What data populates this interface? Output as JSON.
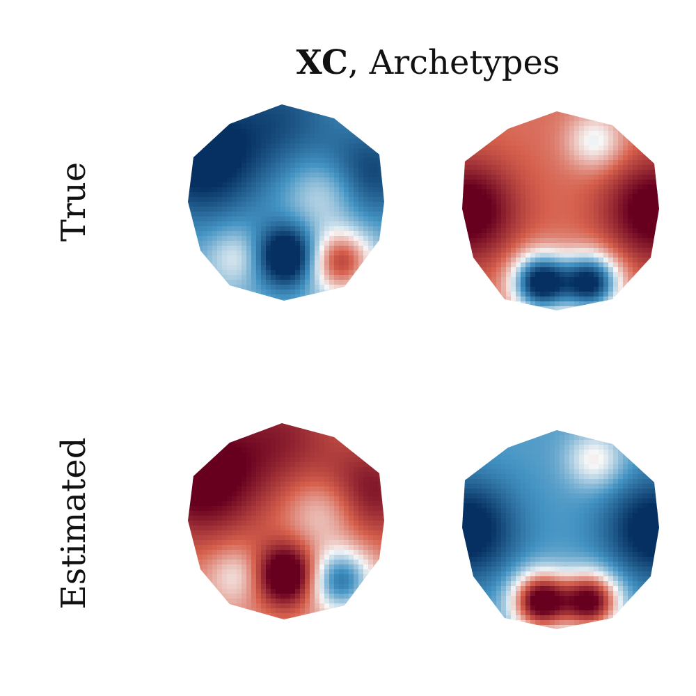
{
  "chart_data": {
    "type": "heatmap",
    "title": {
      "bold": "XC",
      "rest": ", Archetypes"
    },
    "row_labels": [
      "True",
      "Estimated"
    ],
    "colormap": "RdBu_r",
    "colors": {
      "neg": "#053061",
      "neg_mid": "#4393c3",
      "zero": "#f7f7f7",
      "pos_mid": "#d6604d",
      "pos": "#67001f"
    },
    "topomaps": [
      {
        "row": "True",
        "column": 1,
        "baseline": -0.35,
        "sources": [
          {
            "u": -0.85,
            "v": -0.45,
            "value": -0.8,
            "spread": 0.45
          },
          {
            "u": 0.85,
            "v": -0.3,
            "value": -0.55,
            "spread": 0.35
          },
          {
            "u": 0.0,
            "v": -0.9,
            "value": -0.4,
            "spread": 0.4
          },
          {
            "u": 0.0,
            "v": 0.55,
            "value": -1.0,
            "spread": 0.22
          },
          {
            "u": 0.55,
            "v": 0.6,
            "value": 1.0,
            "spread": 0.22
          },
          {
            "u": 0.4,
            "v": -0.1,
            "value": 0.35,
            "spread": 0.25
          },
          {
            "u": -0.5,
            "v": 0.55,
            "value": 0.35,
            "spread": 0.2
          }
        ]
      },
      {
        "row": "True",
        "column": 2,
        "baseline": 0.45,
        "sources": [
          {
            "u": -0.95,
            "v": 0.0,
            "value": 0.7,
            "spread": 0.35
          },
          {
            "u": 0.95,
            "v": 0.0,
            "value": 0.7,
            "spread": 0.35
          },
          {
            "u": 0.35,
            "v": -0.7,
            "value": -0.5,
            "spread": 0.2
          },
          {
            "u": -0.2,
            "v": 0.72,
            "value": -1.6,
            "spread": 0.2
          },
          {
            "u": 0.3,
            "v": 0.72,
            "value": -1.5,
            "spread": 0.2
          }
        ]
      },
      {
        "row": "Estimated",
        "column": 1,
        "baseline": 0.35,
        "sources": [
          {
            "u": -0.85,
            "v": -0.45,
            "value": 0.8,
            "spread": 0.45
          },
          {
            "u": 0.85,
            "v": -0.3,
            "value": 0.55,
            "spread": 0.35
          },
          {
            "u": 0.0,
            "v": -0.9,
            "value": 0.4,
            "spread": 0.4
          },
          {
            "u": 0.0,
            "v": 0.55,
            "value": 1.0,
            "spread": 0.22
          },
          {
            "u": 0.55,
            "v": 0.6,
            "value": -1.0,
            "spread": 0.22
          },
          {
            "u": 0.4,
            "v": -0.1,
            "value": -0.35,
            "spread": 0.25
          },
          {
            "u": -0.5,
            "v": 0.55,
            "value": -0.35,
            "spread": 0.2
          }
        ]
      },
      {
        "row": "Estimated",
        "column": 2,
        "baseline": -0.45,
        "sources": [
          {
            "u": -0.95,
            "v": 0.0,
            "value": -0.7,
            "spread": 0.35
          },
          {
            "u": 0.95,
            "v": 0.0,
            "value": -0.7,
            "spread": 0.35
          },
          {
            "u": 0.35,
            "v": -0.7,
            "value": 0.5,
            "spread": 0.2
          },
          {
            "u": -0.2,
            "v": 0.72,
            "value": 1.6,
            "spread": 0.2
          },
          {
            "u": 0.3,
            "v": 0.72,
            "value": 1.5,
            "spread": 0.2
          }
        ]
      }
    ]
  }
}
